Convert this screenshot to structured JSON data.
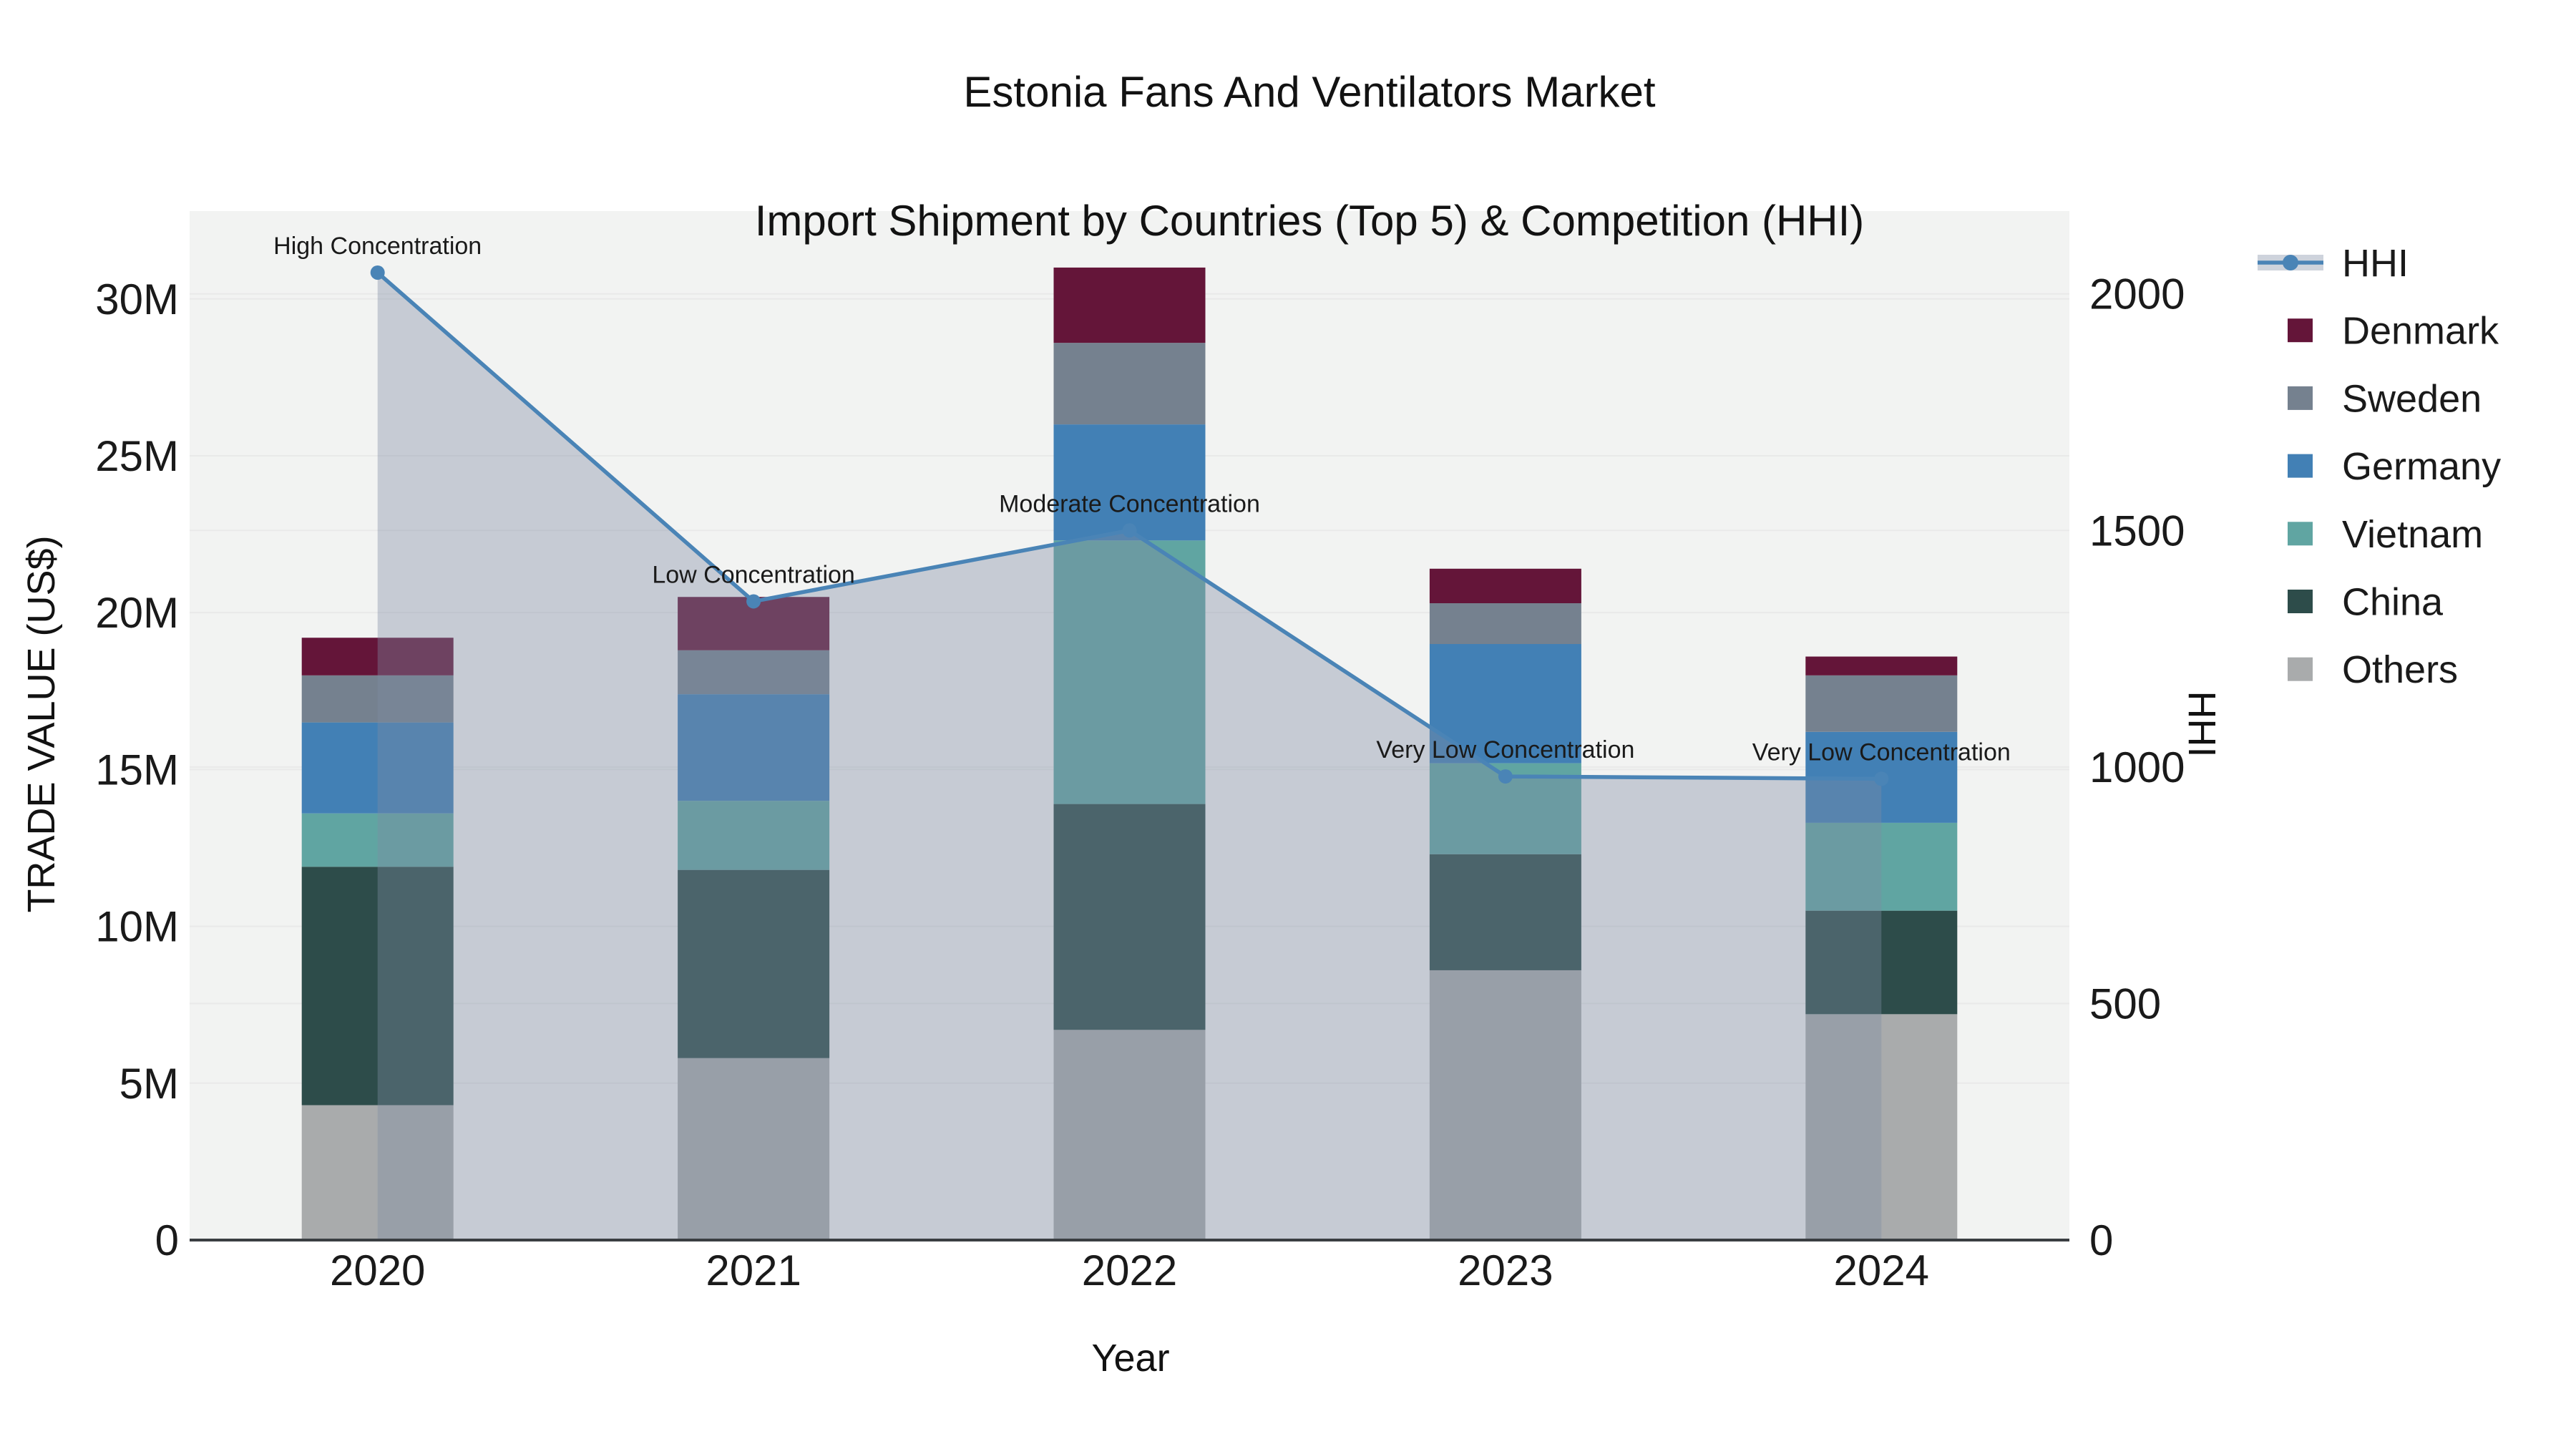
{
  "title": {
    "line1": "Estonia Fans And Ventilators Market",
    "line2": "Import Shipment by Countries (Top 5) & Competition (HHI)"
  },
  "chart_data": {
    "type": "combo: stacked-bar + line-area (dual axis)",
    "title": "Estonia Fans And Ventilators Market Import Shipment by Countries (Top 5) & Competition (HHI)",
    "categories": [
      "2020",
      "2021",
      "2022",
      "2023",
      "2024"
    ],
    "xlabel": "Year",
    "ylabel": "TRADE VALUE (US$)",
    "y2label": "HHI",
    "ylim": [
      0,
      32.8
    ],
    "y2lim": [
      0,
      2175
    ],
    "grid": true,
    "plot_bg": "#f2f3f2",
    "grid_color": "#e9e9e9",
    "axis_line_color": "#3a3e42",
    "yticks": [
      {
        "v": 0,
        "label": "0"
      },
      {
        "v": 5,
        "label": "5M"
      },
      {
        "v": 10,
        "label": "10M"
      },
      {
        "v": 15,
        "label": "15M"
      },
      {
        "v": 20,
        "label": "20M"
      },
      {
        "v": 25,
        "label": "25M"
      },
      {
        "v": 30,
        "label": "30M"
      }
    ],
    "y2ticks": [
      {
        "v": 0,
        "label": "0"
      },
      {
        "v": 500,
        "label": "500"
      },
      {
        "v": 1000,
        "label": "1000"
      },
      {
        "v": 1500,
        "label": "1500"
      },
      {
        "v": 2000,
        "label": "2000"
      }
    ],
    "bar_unit": "million US$",
    "series": [
      {
        "name": "Others",
        "color": "#a9abac",
        "values": [
          4.3,
          5.8,
          6.7,
          8.6,
          7.2
        ]
      },
      {
        "name": "China",
        "color": "#2d4c4a",
        "values": [
          7.6,
          6.0,
          7.2,
          3.7,
          3.3
        ]
      },
      {
        "name": "Vietnam",
        "color": "#60a5a2",
        "values": [
          1.7,
          2.2,
          8.4,
          2.9,
          2.8
        ]
      },
      {
        "name": "Germany",
        "color": "#4280b5",
        "values": [
          2.9,
          3.4,
          3.7,
          3.8,
          2.9
        ]
      },
      {
        "name": "Sweden",
        "color": "#75818f",
        "values": [
          1.5,
          1.4,
          2.6,
          1.3,
          1.8
        ]
      },
      {
        "name": "Denmark",
        "color": "#641539",
        "values": [
          1.2,
          1.7,
          2.4,
          1.1,
          0.6
        ]
      }
    ],
    "stack_order_note": "bottom to top: Others, China, Vietnam, Germany, Sweden, Denmark",
    "bar_totals": [
      19.2,
      20.5,
      31.0,
      21.4,
      18.6
    ],
    "line_series": {
      "name": "HHI",
      "color": "#4a84b6",
      "area_fill": "rgba(125,139,162,0.38)",
      "values": [
        2045,
        1350,
        1500,
        980,
        975
      ]
    },
    "annotations": [
      "High Concentration",
      "Low Concentration",
      "Moderate Concentration",
      "Very Low Concentration",
      "Very Low Concentration"
    ],
    "legend": {
      "position": "right",
      "items": [
        "HHI",
        "Denmark",
        "Sweden",
        "Germany",
        "Vietnam",
        "China",
        "Others"
      ]
    }
  }
}
